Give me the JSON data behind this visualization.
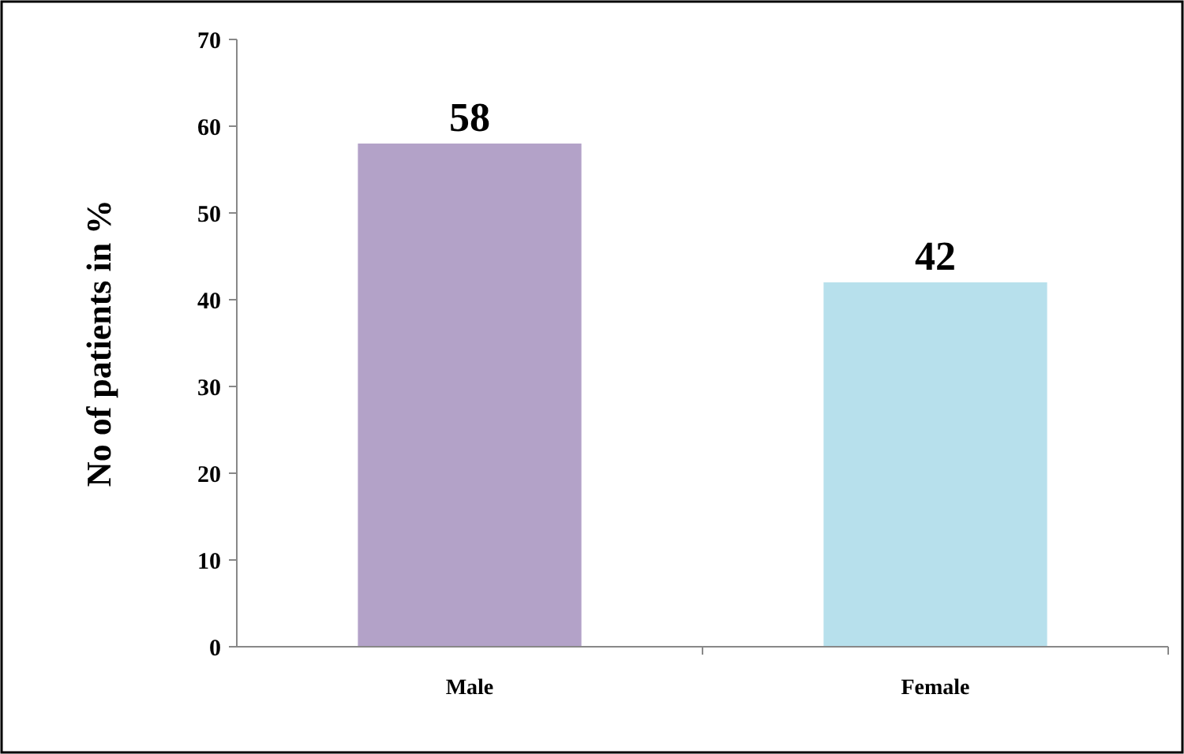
{
  "chart_data": {
    "type": "bar",
    "ylabel": "No of patients in %",
    "categories": [
      "Male",
      "Female"
    ],
    "values": [
      58,
      42
    ],
    "colors": [
      "#b3a2c8",
      "#b7e0ec"
    ],
    "ylim": [
      0,
      70
    ],
    "yticks": [
      0,
      10,
      20,
      30,
      40,
      50,
      60,
      70
    ],
    "grid": false,
    "data_labels": true
  }
}
